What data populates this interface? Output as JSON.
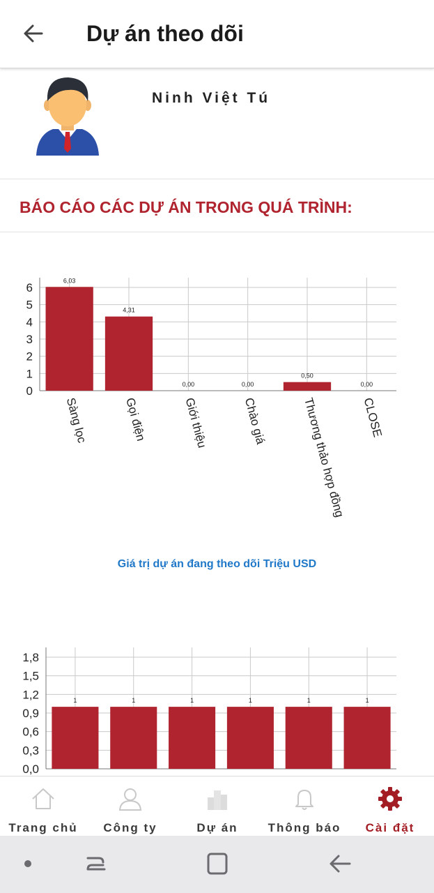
{
  "header": {
    "title": "Dự án theo dõi"
  },
  "profile": {
    "name": "Ninh Việt Tú"
  },
  "section": {
    "title": "BÁO CÁO CÁC DỰ ÁN TRONG QUÁ TRÌNH:"
  },
  "chart_data": [
    {
      "type": "bar",
      "title": "",
      "xlabel": "",
      "ylabel": "",
      "categories": [
        "Sàng lọc",
        "Gọi điện",
        "Giới thiệu",
        "Chào giá",
        "Thương thảo hợp đồng",
        "CLOSE"
      ],
      "values": [
        6.03,
        4.31,
        0,
        0,
        0.5,
        0
      ],
      "value_labels": [
        "6,03",
        "4,31",
        "0,00",
        "0,00",
        "0,50",
        "0,00"
      ],
      "y_ticks": [
        "0",
        "1",
        "2",
        "3",
        "4",
        "5",
        "6"
      ],
      "ylim": [
        0,
        6
      ],
      "grid": true,
      "color": "#b0242f"
    },
    {
      "type": "bar",
      "title": "Giá trị dự án đang theo dõi Triệu USD",
      "categories": [
        "",
        "",
        "",
        "",
        "",
        ""
      ],
      "values": [
        1,
        1,
        1,
        1,
        1,
        1
      ],
      "value_labels": [
        "1",
        "1",
        "1",
        "1",
        "1",
        "1"
      ],
      "y_ticks": [
        "0,0",
        "0,3",
        "0,6",
        "0,9",
        "1,2",
        "1,5",
        "1,8"
      ],
      "ylim": [
        0,
        1.8
      ],
      "grid": true,
      "color": "#b0242f"
    }
  ],
  "nav": {
    "items": [
      {
        "label": "Trang chủ",
        "icon": "home-icon",
        "active": false
      },
      {
        "label": "Công ty",
        "icon": "user-icon",
        "active": false
      },
      {
        "label": "Dự án",
        "icon": "building-icon",
        "active": false
      },
      {
        "label": "Thông báo",
        "icon": "bell-icon",
        "active": false
      },
      {
        "label": "Cài đặt",
        "icon": "gear-icon",
        "active": true
      }
    ]
  },
  "colors": {
    "accent": "#b0242f",
    "link": "#1f78c8",
    "active_nav": "#a31d24",
    "inactive_icon": "#cfcfcf"
  }
}
